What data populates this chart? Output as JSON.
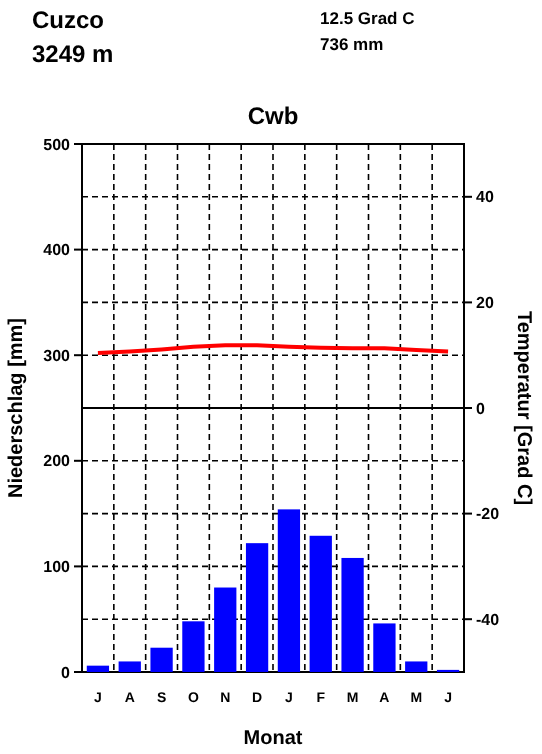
{
  "chart_data": {
    "type": "bar",
    "title": "Cwb",
    "xlabel": "Monat",
    "ylabel": "Niederschlag [mm]",
    "y2label": "Temperatur [Grad C]",
    "annotations": [
      "Cuzco",
      "3249 m",
      "12.5 Grad C",
      "736 mm"
    ],
    "categories": [
      "J",
      "A",
      "S",
      "O",
      "N",
      "D",
      "J",
      "F",
      "M",
      "A",
      "M",
      "J"
    ],
    "series": [
      {
        "color": "#0000ff",
        "values": [
          6,
          10,
          23,
          48,
          80,
          122,
          154,
          129,
          108,
          46,
          10,
          2
        ]
      },
      {
        "type": "line",
        "axis": "y2",
        "color": "#ff0000",
        "values": [
          10.4,
          10.7,
          11.1,
          11.6,
          11.9,
          11.9,
          11.6,
          11.4,
          11.3,
          11.3,
          11,
          10.7
        ]
      }
    ],
    "ylim": [
      0,
      500
    ],
    "yticks": [
      0,
      100,
      200,
      300,
      400,
      500
    ],
    "y2lim": [
      -50,
      50
    ],
    "y2ticks": [
      -40,
      -20,
      0,
      20,
      40
    ],
    "ref_lines": [
      {
        "axis": "y2",
        "value": 0
      }
    ],
    "grid": true
  }
}
